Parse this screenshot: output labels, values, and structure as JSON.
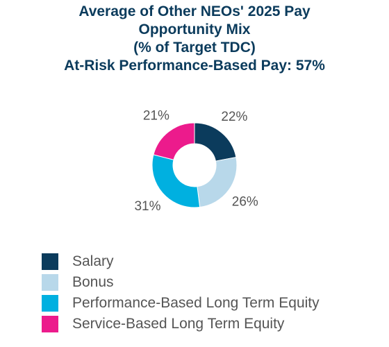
{
  "title": {
    "line1": "Average of Other NEOs' 2025 Pay",
    "line2": "Opportunity Mix",
    "line3": "(% of Target TDC)",
    "line4": "At-Risk Performance-Based Pay: 57%"
  },
  "chart_data": {
    "type": "pie",
    "donut": true,
    "title": "Average of Other NEOs' 2025 Pay Opportunity Mix (% of Target TDC)",
    "subtitle": "At-Risk Performance-Based Pay: 57%",
    "legend_position": "bottom-left",
    "slices": [
      {
        "name": "Salary",
        "value": 22,
        "label": "22%",
        "color": "#0b3b5c"
      },
      {
        "name": "Bonus",
        "value": 26,
        "label": "26%",
        "color": "#b8d8ea"
      },
      {
        "name": "Performance-Based Long Term Equity",
        "value": 31,
        "label": "31%",
        "color": "#00b0e0"
      },
      {
        "name": "Service-Based Long Term Equity",
        "value": 21,
        "label": "21%",
        "color": "#ec1b8c"
      }
    ]
  }
}
